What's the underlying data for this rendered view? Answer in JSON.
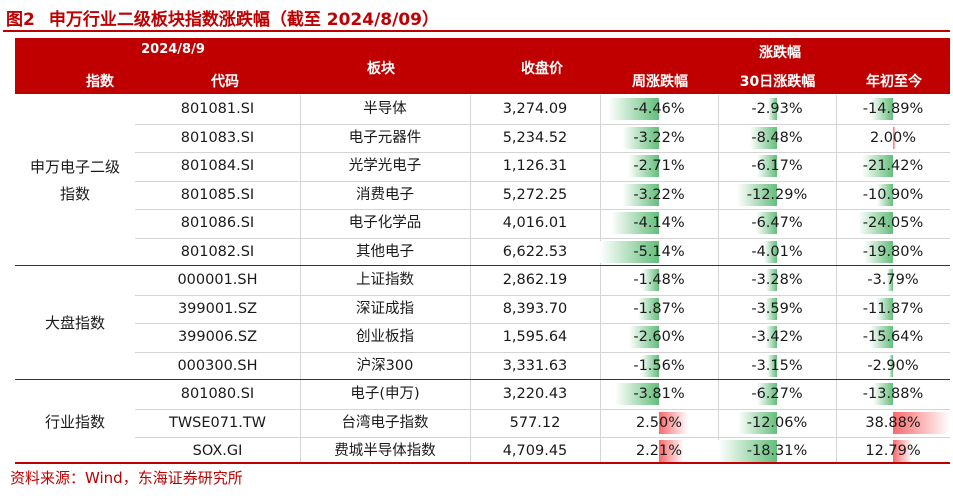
{
  "title": {
    "fig": "图2",
    "text": "申万行业二级板块指数涨跌幅（截至 2024/8/09）"
  },
  "header": {
    "date": "2024/8/9",
    "index": "指数",
    "code": "代码",
    "sector": "板块",
    "close": "收盘价",
    "change_group": "涨跌幅",
    "week": "周涨跌幅",
    "d30": "30日涨跌幅",
    "ytd": "年初至今"
  },
  "groups": [
    {
      "label": "申万电子二级\n指数",
      "rows": [
        {
          "code": "801081.SI",
          "name": "半导体",
          "close": "3,274.09",
          "week": "-4.46%",
          "d30": "-2.93%",
          "ytd": "-14.89%",
          "week_v": -4.46,
          "d30_v": -2.93,
          "ytd_v": -14.89
        },
        {
          "code": "801083.SI",
          "name": "电子元器件",
          "close": "5,234.52",
          "week": "-3.22%",
          "d30": "-8.48%",
          "ytd": "2.00%",
          "week_v": -3.22,
          "d30_v": -8.48,
          "ytd_v": 2.0
        },
        {
          "code": "801084.SI",
          "name": "光学光电子",
          "close": "1,126.31",
          "week": "-2.71%",
          "d30": "-6.17%",
          "ytd": "-21.42%",
          "week_v": -2.71,
          "d30_v": -6.17,
          "ytd_v": -21.42
        },
        {
          "code": "801085.SI",
          "name": "消费电子",
          "close": "5,272.25",
          "week": "-3.22%",
          "d30": "-12.29%",
          "ytd": "-10.90%",
          "week_v": -3.22,
          "d30_v": -12.29,
          "ytd_v": -10.9
        },
        {
          "code": "801086.SI",
          "name": "电子化学品",
          "close": "4,016.01",
          "week": "-4.14%",
          "d30": "-6.47%",
          "ytd": "-24.05%",
          "week_v": -4.14,
          "d30_v": -6.47,
          "ytd_v": -24.05
        },
        {
          "code": "801082.SI",
          "name": "其他电子",
          "close": "6,622.53",
          "week": "-5.14%",
          "d30": "-4.01%",
          "ytd": "-19.80%",
          "week_v": -5.14,
          "d30_v": -4.01,
          "ytd_v": -19.8
        }
      ]
    },
    {
      "label": "大盘指数",
      "rows": [
        {
          "code": "000001.SH",
          "name": "上证指数",
          "close": "2,862.19",
          "week": "-1.48%",
          "d30": "-3.28%",
          "ytd": "-3.79%",
          "week_v": -1.48,
          "d30_v": -3.28,
          "ytd_v": -3.79
        },
        {
          "code": "399001.SZ",
          "name": "深证成指",
          "close": "8,393.70",
          "week": "-1.87%",
          "d30": "-3.59%",
          "ytd": "-11.87%",
          "week_v": -1.87,
          "d30_v": -3.59,
          "ytd_v": -11.87
        },
        {
          "code": "399006.SZ",
          "name": "创业板指",
          "close": "1,595.64",
          "week": "-2.60%",
          "d30": "-3.42%",
          "ytd": "-15.64%",
          "week_v": -2.6,
          "d30_v": -3.42,
          "ytd_v": -15.64
        },
        {
          "code": "000300.SH",
          "name": "沪深300",
          "close": "3,331.63",
          "week": "-1.56%",
          "d30": "-3.15%",
          "ytd": "-2.90%",
          "week_v": -1.56,
          "d30_v": -3.15,
          "ytd_v": -2.9
        }
      ]
    },
    {
      "label": "行业指数",
      "rows": [
        {
          "code": "801080.SI",
          "name": "电子(申万)",
          "close": "3,220.43",
          "week": "-3.81%",
          "d30": "-6.27%",
          "ytd": "-13.88%",
          "week_v": -3.81,
          "d30_v": -6.27,
          "ytd_v": -13.88
        },
        {
          "code": "TWSE071.TW",
          "name": "台湾电子指数",
          "close": "577.12",
          "week": "2.50%",
          "d30": "-12.06%",
          "ytd": "38.88%",
          "week_v": 2.5,
          "d30_v": -12.06,
          "ytd_v": 38.88
        },
        {
          "code": "SOX.GI",
          "name": "费城半导体指数",
          "close": "4,709.45",
          "week": "2.21%",
          "d30": "-18.31%",
          "ytd": "12.79%",
          "week_v": 2.21,
          "d30_v": -18.31,
          "ytd_v": 12.79
        }
      ]
    }
  ],
  "colors": {
    "header_bg": "#c00000",
    "neg_bar": "#63be7b",
    "pos_bar": "#f8696b",
    "source_text": "#c00000"
  },
  "source": "资料来源：Wind，东海证券研究所"
}
